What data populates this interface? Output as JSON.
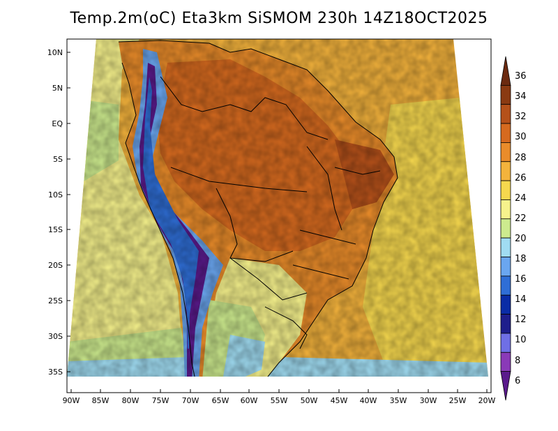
{
  "title": "Temp.2m(oC) Eta3km SiSMOM 230h 14Z18OCT2025",
  "variable": "2 m temperature",
  "units": "oC",
  "lat_ticks": [
    "10N",
    "5N",
    "EQ",
    "5S",
    "10S",
    "15S",
    "20S",
    "25S",
    "30S",
    "35S"
  ],
  "lon_ticks": [
    "90W",
    "85W",
    "80W",
    "75W",
    "70W",
    "65W",
    "60W",
    "55W",
    "50W",
    "45W",
    "40W",
    "35W",
    "30W",
    "25W",
    "20W"
  ],
  "colorbar": {
    "labels": [
      "36",
      "34",
      "32",
      "30",
      "28",
      "26",
      "24",
      "22",
      "20",
      "18",
      "16",
      "14",
      "12",
      "10",
      "8",
      "6"
    ],
    "colors": [
      "#6b2a10",
      "#8a3a12",
      "#b5511a",
      "#d66a1f",
      "#ea8c2a",
      "#f4b33c",
      "#f6d84e",
      "#f6f28c",
      "#cdeb8e",
      "#a0dcf2",
      "#6aa6f0",
      "#2f6ed6",
      "#0a2ca6",
      "#1e1e8c",
      "#6f6fe6",
      "#8a3ab8",
      "#5a1a8c"
    ]
  }
}
